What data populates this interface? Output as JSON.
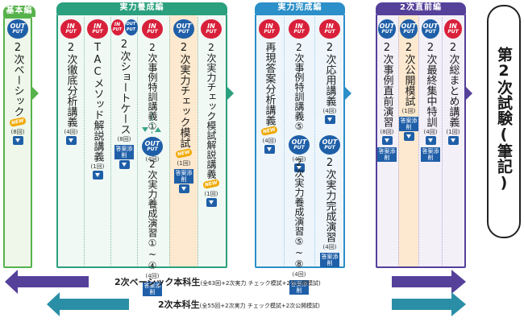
{
  "phases": {
    "kihon": "基本編",
    "jitsuryoku_yosei": "実力養成編",
    "jitsuryoku_kansei": "実力完成編",
    "chokuzen": "2次直前編"
  },
  "badge": {
    "in_top": "IN",
    "in_bot": "PUT",
    "out_top": "OUT",
    "out_bot": "PUT"
  },
  "tags": {
    "new": "NEW",
    "answer": "答案添削"
  },
  "courses": {
    "c1": {
      "label": "2次ベーシック",
      "count": "(8回)"
    },
    "c2": {
      "label": "2次徹底分析講義",
      "count": "(4回)"
    },
    "c3": {
      "label": "TACメソッド解説講義",
      "count": "(1回)"
    },
    "c4": {
      "label": "2次ショートケース",
      "count": "(8回)"
    },
    "c5a": {
      "label": "2次事例特訓講義①~④",
      "count": "(4回)"
    },
    "c5b": {
      "label": "2次実力養成演習①~④",
      "count": "(4回)"
    },
    "c6": {
      "label": "2次実力チェック模試",
      "count": "(1回)"
    },
    "c7": {
      "label": "2次実力チェック模試解説講義",
      "count": "(1回)"
    },
    "c8": {
      "label": "再現答案分析講義",
      "count": "(4回)"
    },
    "c9a": {
      "label": "2次事例特訓講義⑤~⑧",
      "count": "(4回)"
    },
    "c9b": {
      "label": "2次実力養成演習⑤~⑧",
      "count": "(4回)"
    },
    "c10a": {
      "label": "2次応用講義",
      "count": "(4回)"
    },
    "c10b": {
      "label": "2次実力完成演習",
      "count": "(4回)"
    },
    "c11": {
      "label": "2次事例直前演習",
      "count": "(8回)"
    },
    "c12": {
      "label": "2次公開模試",
      "count": "(1回)"
    },
    "c13": {
      "label": "2次最終集中特訓",
      "count": "(4回)"
    },
    "c14": {
      "label": "2次総まとめ講義",
      "count": "(1回)"
    }
  },
  "exam": "第2次試験(筆記)",
  "bars": {
    "basic_main": "2次ベーシック本科生",
    "basic_sub": "(全63回+2次実力 チェック模試+2次公開模試)",
    "honka_main": "2次本科生",
    "honka_sub": "(全55回+2次実力 チェック模試+2次公開模試)"
  },
  "colors": {
    "green": "#56b24a",
    "teal": "#2aa07e",
    "blue": "#2b8fc9",
    "purple": "#55409a",
    "in_red": "#d9203a",
    "out_blue": "#1f5fa8",
    "new_orange": "#f0a800",
    "answer_blue": "#1f5fa8"
  }
}
